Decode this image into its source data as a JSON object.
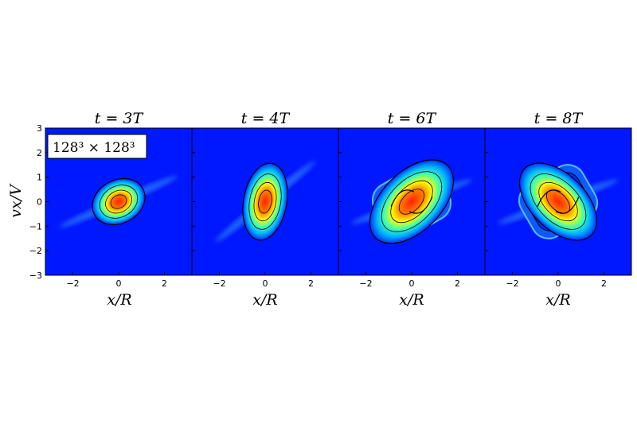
{
  "chart_data": {
    "type": "heatmap",
    "annotation": "128³ × 128³",
    "xlabel": "x/R",
    "ylabel": "vx/V",
    "xlim": [
      -3.2,
      3.2
    ],
    "ylim": [
      -3,
      3
    ],
    "xticks": [
      -2,
      0,
      2
    ],
    "xtick_labels": [
      "−2",
      "0",
      "2"
    ],
    "yticks": [
      -3,
      -2,
      -1,
      0,
      1,
      2,
      3
    ],
    "ytick_labels": [
      "−3",
      "−2",
      "−1",
      "0",
      "1",
      "2",
      "3"
    ],
    "colormap": "jet",
    "background_color": "#0018ff",
    "panels": [
      {
        "title": "t = 3T",
        "shape": "sheared",
        "rotation_deg": 28,
        "extent": [
          1.2,
          0.55
        ]
      },
      {
        "title": "t = 4T",
        "shape": "sheared",
        "rotation_deg": 80,
        "extent": [
          1.7,
          0.55
        ]
      },
      {
        "title": "t = 6T",
        "shape": "spiral",
        "rotation_deg": 135,
        "extent": [
          1.3,
          1.3
        ]
      },
      {
        "title": "t = 8T",
        "shape": "spiral",
        "rotation_deg": 225,
        "extent": [
          1.2,
          1.2
        ]
      }
    ]
  }
}
